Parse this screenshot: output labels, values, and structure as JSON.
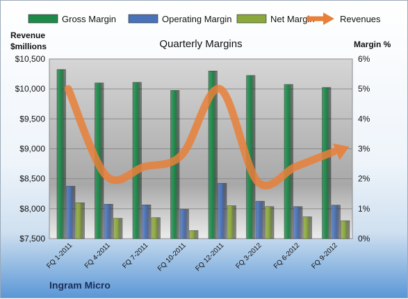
{
  "chart_data": {
    "type": "bar",
    "title": "Quarterly Margins",
    "source": "Ingram Micro",
    "left_axis_title": [
      "Revenue",
      "$millions"
    ],
    "right_axis_title": "Margin %",
    "categories": [
      "FQ 1-2011",
      "FQ 4-2011",
      "FQ 7-2011",
      "FQ 10-2011",
      "FQ 12-2011",
      "FQ 3-2012",
      "FQ 6-2012",
      "FQ 9-2012"
    ],
    "left_axis": {
      "min": 7500,
      "max": 10500,
      "step": 500,
      "ticks": [
        "$7,500",
        "$8,000",
        "$8,500",
        "$9,000",
        "$9,500",
        "$10,000",
        "$10,500"
      ]
    },
    "right_axis": {
      "min": 0,
      "max": 6,
      "step": 1,
      "ticks": [
        "0%",
        "1%",
        "2%",
        "3%",
        "4%",
        "5%",
        "6%"
      ]
    },
    "series": [
      {
        "name": "Gross Margin",
        "axis": "right",
        "kind": "bar",
        "color": "#1e8a4a",
        "values": [
          5.65,
          5.2,
          5.22,
          4.95,
          5.6,
          5.45,
          5.15,
          5.05
        ]
      },
      {
        "name": "Operating Margin",
        "axis": "right",
        "kind": "bar",
        "color": "#4a72b8",
        "values": [
          1.75,
          1.15,
          1.13,
          0.98,
          1.85,
          1.25,
          1.07,
          1.12
        ]
      },
      {
        "name": "Net Margin",
        "axis": "right",
        "kind": "bar",
        "color": "#8aa83c",
        "values": [
          1.2,
          0.68,
          0.7,
          0.27,
          1.1,
          1.07,
          0.73,
          0.6
        ]
      },
      {
        "name": "Revenues",
        "axis": "left",
        "kind": "line",
        "color": "#e8803a",
        "values": [
          10000,
          8550,
          8700,
          8900,
          10000,
          8450,
          8700,
          8950
        ]
      }
    ],
    "grid": true,
    "legend": "top"
  }
}
